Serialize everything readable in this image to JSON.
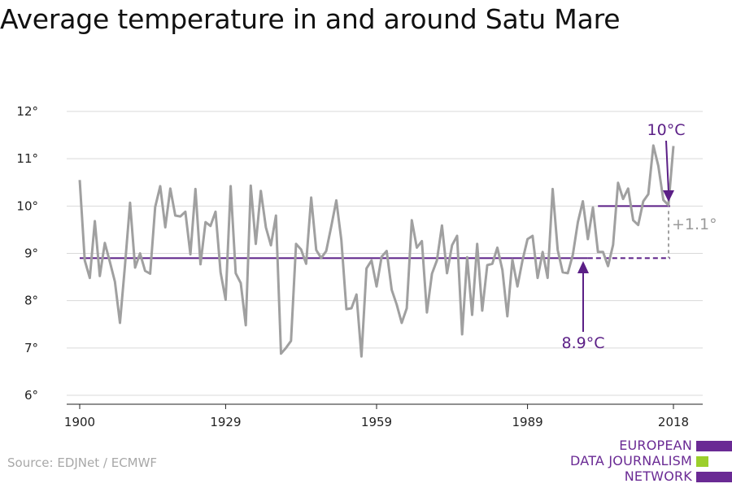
{
  "title": "Average temperature in and around Satu Mare",
  "source": "Source: EDJNet / ECMWF",
  "logo": {
    "lines": [
      "EUROPEAN",
      "DATA JOURNALISM",
      "NETWORK"
    ],
    "colors": [
      "#6a2a94",
      "#9ccf2c",
      "#6a2a94"
    ]
  },
  "colors": {
    "series": "#a0a0a0",
    "baseline": "#5b1f86",
    "recent": "#5b1f86",
    "difference": "#a0a0a0",
    "grid": "#d9d9d9"
  },
  "annotations": {
    "recent_label": "10°C",
    "baseline_label": "8.9°C",
    "difference_label": "+1.1°"
  },
  "chart_data": {
    "type": "line",
    "title": "Average temperature in and around Satu Mare",
    "xlabel": "",
    "ylabel": "",
    "xlim": [
      1900,
      2018
    ],
    "ylim": [
      6,
      12
    ],
    "y_ticks": [
      6,
      7,
      8,
      9,
      10,
      11,
      12
    ],
    "y_tick_labels": [
      "6°",
      "7°",
      "8°",
      "9°",
      "10°",
      "11°",
      "12°"
    ],
    "x_ticks": [
      1900,
      1929,
      1959,
      1989,
      2018
    ],
    "x_tick_labels": [
      "1900",
      "1929",
      "1959",
      "1989",
      "2018"
    ],
    "grid": true,
    "series": [
      {
        "start_year": 1900,
        "values": [
          10.55,
          8.85,
          8.48,
          9.68,
          8.52,
          9.22,
          8.82,
          8.4,
          7.53,
          8.75,
          10.07,
          8.7,
          9.0,
          8.63,
          8.57,
          9.98,
          10.42,
          9.55,
          10.37,
          9.8,
          9.78,
          9.88,
          8.98,
          10.36,
          8.77,
          9.66,
          9.58,
          9.88,
          8.6,
          8.02,
          10.42,
          8.58,
          8.37,
          7.48,
          10.43,
          9.2,
          10.32,
          9.55,
          9.17,
          9.8,
          6.88,
          7.0,
          7.15,
          9.2,
          9.08,
          8.78,
          10.18,
          9.07,
          8.9,
          9.05,
          9.57,
          10.12,
          9.28,
          7.82,
          7.84,
          8.13,
          6.82,
          8.68,
          8.85,
          8.3,
          8.93,
          9.05,
          8.23,
          7.92,
          7.53,
          7.84,
          9.7,
          9.12,
          9.26,
          7.75,
          8.57,
          8.85,
          9.59,
          8.58,
          9.17,
          9.37,
          7.29,
          8.92,
          7.7,
          9.2,
          7.79,
          8.75,
          8.78,
          9.12,
          8.65,
          7.67,
          8.87,
          8.3,
          8.85,
          9.3,
          9.37,
          8.48,
          9.03,
          8.48,
          10.36,
          9.07,
          8.6,
          8.58,
          8.97,
          9.66,
          10.1,
          9.3,
          9.97,
          9.03,
          9.03,
          8.73,
          9.18,
          10.49,
          10.15,
          10.37,
          9.7,
          9.6,
          10.1,
          10.25,
          11.28,
          10.85,
          10.13,
          10.02,
          11.27
        ]
      }
    ],
    "reference_lines": [
      {
        "label": "8.9°C",
        "value": 8.9,
        "x_start": 1900,
        "x_end": 2018,
        "solid_until": 2001
      },
      {
        "label": "10°C",
        "value": 10.0,
        "x_start": 2003,
        "x_end": 2018
      }
    ],
    "difference": {
      "label": "+1.1°",
      "from": 8.9,
      "to": 10.0,
      "at_year": 2018
    }
  }
}
